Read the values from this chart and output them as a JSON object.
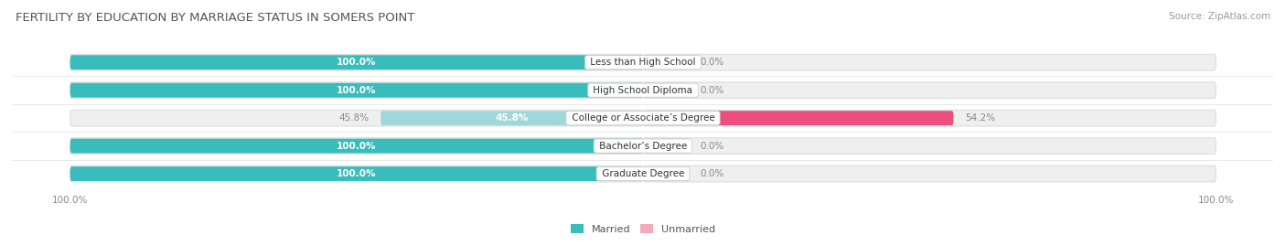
{
  "title": "FERTILITY BY EDUCATION BY MARRIAGE STATUS IN SOMERS POINT",
  "source": "Source: ZipAtlas.com",
  "categories": [
    "Less than High School",
    "High School Diploma",
    "College or Associate’s Degree",
    "Bachelor’s Degree",
    "Graduate Degree"
  ],
  "married": [
    100.0,
    100.0,
    45.8,
    100.0,
    100.0
  ],
  "unmarried": [
    0.0,
    0.0,
    54.2,
    0.0,
    0.0
  ],
  "married_color": "#38BCBC",
  "married_light_color": "#A0D8D8",
  "unmarried_color": "#EE4D80",
  "unmarried_light_color": "#F5AABB",
  "background_color": "#FFFFFF",
  "bar_track_color": "#EFEFEF",
  "bar_track_shadow": "#DDDDDD",
  "title_color": "#555555",
  "source_color": "#999999",
  "label_color": "#555555",
  "value_inside_color": "#FFFFFF",
  "value_outside_color": "#888888",
  "title_fontsize": 9.5,
  "source_fontsize": 7.5,
  "label_fontsize": 7.5,
  "legend_fontsize": 8,
  "xlim_left": -110,
  "xlim_right": 110,
  "x_axis_labels": [
    "100.0%",
    "100.0%"
  ]
}
